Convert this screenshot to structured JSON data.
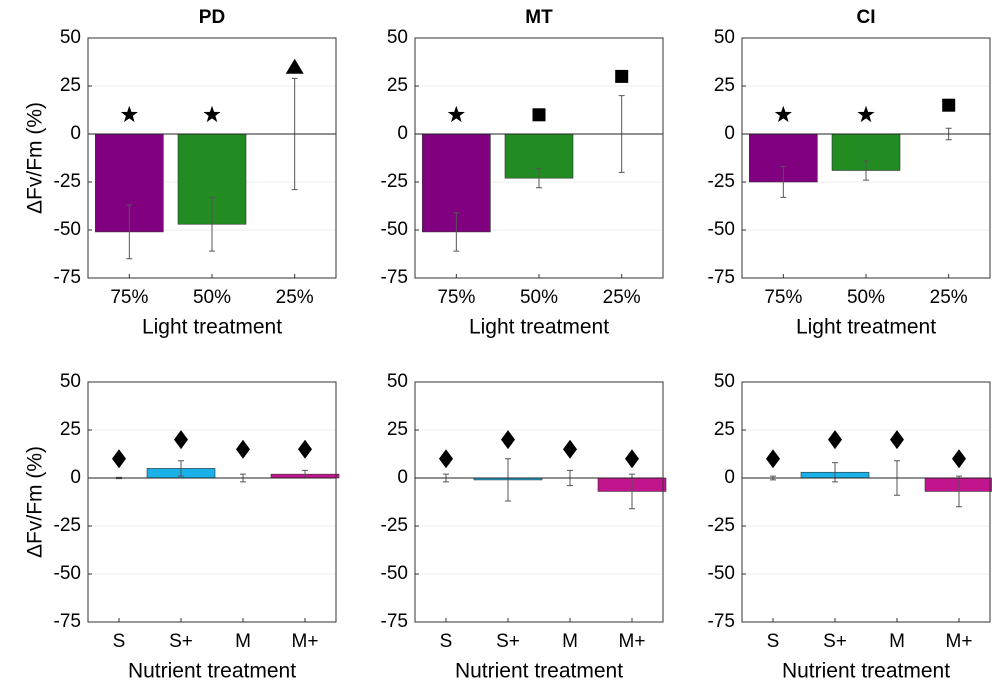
{
  "chart_data": [
    {
      "type": "bar",
      "title": "PD",
      "ylabel": "ΔFv/Fm (%)",
      "xlabel": "Light treatment",
      "categories": [
        "75%",
        "50%",
        "25%"
      ],
      "values": [
        -51,
        -47,
        0
      ],
      "errors": [
        14,
        14,
        29
      ],
      "colors": [
        "#800080",
        "#228b22",
        "#808080"
      ],
      "markers": {
        "shapes": [
          "star",
          "star",
          "triangle"
        ],
        "y": [
          10,
          10,
          35
        ]
      },
      "ylim": [
        -75,
        50
      ],
      "yticks": [
        -75,
        -50,
        -25,
        0,
        25,
        50
      ],
      "grid": true
    },
    {
      "type": "bar",
      "title": "MT",
      "xlabel": "Light treatment",
      "categories": [
        "75%",
        "50%",
        "25%"
      ],
      "values": [
        -51,
        -23,
        0
      ],
      "errors": [
        10,
        5,
        20
      ],
      "colors": [
        "#800080",
        "#228b22",
        "#808080"
      ],
      "markers": {
        "shapes": [
          "star",
          "square",
          "square"
        ],
        "y": [
          10,
          10,
          30
        ]
      },
      "ylim": [
        -75,
        50
      ],
      "yticks": [
        -75,
        -50,
        -25,
        0,
        25,
        50
      ],
      "grid": true
    },
    {
      "type": "bar",
      "title": "CI",
      "xlabel": "Light treatment",
      "categories": [
        "75%",
        "50%",
        "25%"
      ],
      "values": [
        -25,
        -19,
        0
      ],
      "errors": [
        8,
        5,
        3
      ],
      "colors": [
        "#800080",
        "#228b22",
        "#808080"
      ],
      "markers": {
        "shapes": [
          "star",
          "star",
          "square"
        ],
        "y": [
          10,
          10,
          15
        ]
      },
      "ylim": [
        -75,
        50
      ],
      "yticks": [
        -75,
        -50,
        -25,
        0,
        25,
        50
      ],
      "grid": true
    },
    {
      "type": "bar",
      "ylabel": "ΔFv/Fm (%)",
      "xlabel": "Nutrient treatment",
      "categories": [
        "S",
        "S+",
        "M",
        "M+"
      ],
      "values": [
        0,
        5,
        0,
        2
      ],
      "errors": [
        0.3,
        4,
        2,
        2
      ],
      "colors": [
        "#555555",
        "#1ab0e8",
        "#555555",
        "#c2148c"
      ],
      "markers": {
        "shapes": [
          "diamond",
          "diamond",
          "diamond",
          "diamond"
        ],
        "y": [
          10,
          20,
          15,
          15
        ]
      },
      "ylim": [
        -75,
        50
      ],
      "yticks": [
        -75,
        -50,
        -25,
        0,
        25,
        50
      ],
      "grid": true
    },
    {
      "type": "bar",
      "xlabel": "Nutrient treatment",
      "categories": [
        "S",
        "S+",
        "M",
        "M+"
      ],
      "values": [
        0,
        -1,
        0,
        -7
      ],
      "errors": [
        2,
        11,
        4,
        9
      ],
      "colors": [
        "#555555",
        "#1ab0e8",
        "#555555",
        "#c2148c"
      ],
      "markers": {
        "shapes": [
          "diamond",
          "diamond",
          "diamond",
          "diamond"
        ],
        "y": [
          10,
          20,
          15,
          10
        ]
      },
      "ylim": [
        -75,
        50
      ],
      "yticks": [
        -75,
        -50,
        -25,
        0,
        25,
        50
      ],
      "grid": true
    },
    {
      "type": "bar",
      "xlabel": "Nutrient treatment",
      "categories": [
        "S",
        "S+",
        "M",
        "M+"
      ],
      "values": [
        0,
        3,
        0,
        -7
      ],
      "errors": [
        1,
        5,
        9,
        8
      ],
      "colors": [
        "#555555",
        "#1ab0e8",
        "#555555",
        "#c2148c"
      ],
      "markers": {
        "shapes": [
          "diamond",
          "diamond",
          "diamond",
          "diamond"
        ],
        "y": [
          10,
          20,
          20,
          10
        ]
      },
      "ylim": [
        -75,
        50
      ],
      "yticks": [
        -75,
        -50,
        -25,
        0,
        25,
        50
      ],
      "grid": true
    }
  ]
}
